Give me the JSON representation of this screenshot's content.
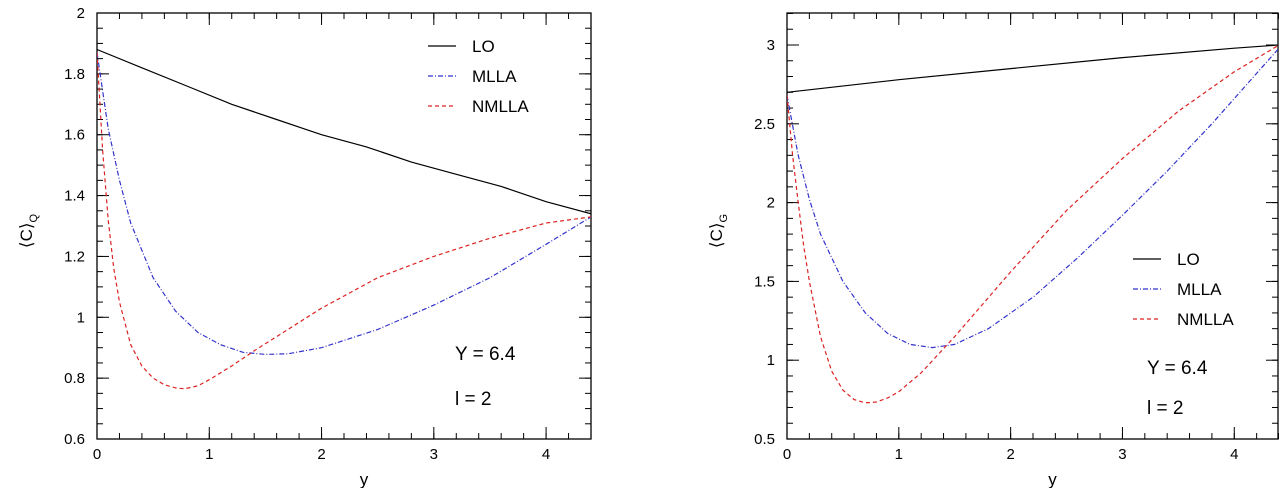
{
  "chart_data": [
    {
      "type": "line",
      "xlabel": "y",
      "ylabel": "⟨C⟩",
      "ylabel_sub": "Q",
      "xlim": [
        0,
        4.4
      ],
      "ylim": [
        0.6,
        2.0
      ],
      "xticks": [
        "0",
        "1",
        "2",
        "3",
        "4"
      ],
      "yticks": [
        "0.6",
        "0.8",
        "1",
        "1.2",
        "1.4",
        "1.6",
        "1.8",
        "2"
      ],
      "legend_position": "top-right",
      "annotations": [
        "Y = 6.4",
        "l = 2"
      ],
      "series": [
        {
          "name": "LO",
          "color": "#000000",
          "dash": "solid",
          "x": [
            0,
            0.4,
            0.8,
            1.2,
            1.6,
            2.0,
            2.4,
            2.8,
            3.2,
            3.6,
            4.0,
            4.4
          ],
          "y": [
            1.88,
            1.82,
            1.76,
            1.7,
            1.65,
            1.6,
            1.56,
            1.51,
            1.47,
            1.43,
            1.38,
            1.34
          ]
        },
        {
          "name": "MLLA",
          "color": "#3333cc",
          "dash": "dashdot",
          "x": [
            0,
            0.1,
            0.2,
            0.3,
            0.5,
            0.7,
            0.9,
            1.1,
            1.3,
            1.5,
            1.7,
            2.0,
            2.5,
            3.0,
            3.5,
            4.0,
            4.4
          ],
          "y": [
            1.87,
            1.62,
            1.45,
            1.31,
            1.13,
            1.02,
            0.95,
            0.91,
            0.885,
            0.878,
            0.88,
            0.9,
            0.96,
            1.04,
            1.13,
            1.24,
            1.33
          ]
        },
        {
          "name": "NMLLA",
          "color": "#dd2222",
          "dash": "dashed",
          "x": [
            0,
            0.05,
            0.1,
            0.15,
            0.2,
            0.3,
            0.4,
            0.5,
            0.6,
            0.7,
            0.78,
            0.9,
            1.0,
            1.2,
            1.4,
            1.7,
            2.0,
            2.5,
            3.0,
            3.5,
            4.0,
            4.4
          ],
          "y": [
            1.87,
            1.55,
            1.32,
            1.16,
            1.05,
            0.91,
            0.84,
            0.8,
            0.778,
            0.768,
            0.765,
            0.775,
            0.795,
            0.84,
            0.89,
            0.96,
            1.03,
            1.13,
            1.2,
            1.26,
            1.31,
            1.33
          ]
        }
      ]
    },
    {
      "type": "line",
      "xlabel": "y",
      "ylabel": "⟨C⟩",
      "ylabel_sub": "G",
      "xlim": [
        0,
        4.4
      ],
      "ylim": [
        0.5,
        3.2
      ],
      "xticks": [
        "0",
        "1",
        "2",
        "3",
        "4"
      ],
      "yticks": [
        "0.5",
        "1",
        "1.5",
        "2",
        "2.5",
        "3"
      ],
      "legend_position": "center-right",
      "annotations": [
        "Y = 6.4",
        "l = 2"
      ],
      "series": [
        {
          "name": "LO",
          "color": "#000000",
          "dash": "solid",
          "x": [
            0,
            1.0,
            2.0,
            3.0,
            4.0,
            4.4
          ],
          "y": [
            2.7,
            2.78,
            2.85,
            2.92,
            2.98,
            3.0
          ]
        },
        {
          "name": "MLLA",
          "color": "#3333cc",
          "dash": "dashdot",
          "x": [
            0,
            0.1,
            0.2,
            0.3,
            0.5,
            0.7,
            0.9,
            1.1,
            1.3,
            1.5,
            1.8,
            2.2,
            2.6,
            3.0,
            3.4,
            3.8,
            4.2,
            4.4
          ],
          "y": [
            2.68,
            2.3,
            2.02,
            1.8,
            1.5,
            1.3,
            1.17,
            1.1,
            1.08,
            1.1,
            1.2,
            1.4,
            1.65,
            1.92,
            2.2,
            2.5,
            2.82,
            2.98
          ]
        },
        {
          "name": "NMLLA",
          "color": "#dd2222",
          "dash": "dashed",
          "x": [
            0,
            0.05,
            0.1,
            0.15,
            0.2,
            0.3,
            0.4,
            0.5,
            0.6,
            0.7,
            0.8,
            0.9,
            1.0,
            1.2,
            1.5,
            2.0,
            2.5,
            3.0,
            3.5,
            4.0,
            4.4
          ],
          "y": [
            2.68,
            2.3,
            2.0,
            1.72,
            1.5,
            1.15,
            0.93,
            0.81,
            0.75,
            0.73,
            0.735,
            0.76,
            0.8,
            0.92,
            1.15,
            1.56,
            1.95,
            2.28,
            2.58,
            2.83,
            3.0
          ]
        }
      ]
    }
  ]
}
